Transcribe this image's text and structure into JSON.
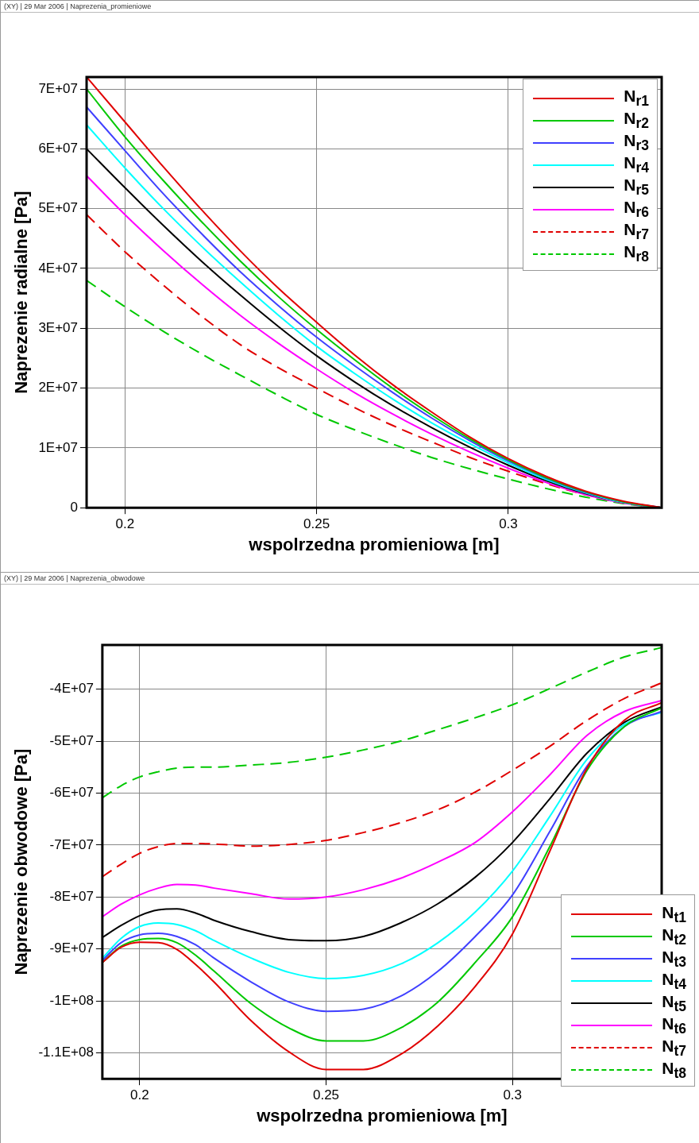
{
  "chart_data": [
    {
      "type": "line",
      "annotations": [
        "(XY) | 29 Mar 2006 | Naprezenia_promieniowe"
      ],
      "xlabel": "wspolrzedna promieniowa [m]",
      "ylabel": "Naprezenie radialne [Pa]",
      "x": [
        0.19,
        0.2,
        0.21,
        0.22,
        0.23,
        0.24,
        0.25,
        0.26,
        0.27,
        0.28,
        0.29,
        0.3,
        0.31,
        0.32,
        0.33,
        0.34
      ],
      "xlim": [
        0.19,
        0.34
      ],
      "xticks": [
        0.2,
        0.25,
        0.3
      ],
      "ylim": [
        0,
        72000000.0
      ],
      "yticks": [
        0,
        {
          "value": 10000000.0,
          "label": "1E+07"
        },
        {
          "value": 20000000.0,
          "label": "2E+07"
        },
        {
          "value": 30000000.0,
          "label": "3E+07"
        },
        {
          "value": 40000000.0,
          "label": "4E+07"
        },
        {
          "value": 50000000.0,
          "label": "5E+07"
        },
        {
          "value": 60000000.0,
          "label": "6E+07"
        },
        {
          "value": 70000000.0,
          "label": "7E+07"
        }
      ],
      "grid": true,
      "legend": "top right",
      "series": [
        {
          "name": "N$_{r1}$",
          "color": "#e00000",
          "line_style": "solid",
          "values": [
            72000000.0,
            64500000.0,
            57000000.0,
            49800000.0,
            43000000.0,
            36700000.0,
            31000000.0,
            25500000.0,
            20500000.0,
            16000000.0,
            11800000.0,
            8200000.0,
            5200000.0,
            2800000.0,
            1100000.0,
            0
          ]
        },
        {
          "name": "N$_{r2}$",
          "color": "#00c800",
          "line_style": "solid",
          "values": [
            70000000.0,
            62000000.0,
            54700000.0,
            47800000.0,
            41300000.0,
            35300000.0,
            29800000.0,
            24700000.0,
            19900000.0,
            15500000.0,
            11500000.0,
            8000000.0,
            5000000.0,
            2700000.0,
            1000000.0,
            0
          ]
        },
        {
          "name": "N$_{r3}$",
          "color": "#4040ff",
          "line_style": "solid",
          "values": [
            67000000.0,
            59700000.0,
            52500000.0,
            45800000.0,
            39500000.0,
            33800000.0,
            28500000.0,
            23700000.0,
            19200000.0,
            15000000.0,
            11200000.0,
            7800000.0,
            4900000.0,
            2600000.0,
            1000000.0,
            0
          ]
        },
        {
          "name": "N$_{r4}$",
          "color": "#00ffff",
          "line_style": "solid",
          "values": [
            64000000.0,
            56800000.0,
            50000000.0,
            43700000.0,
            37800000.0,
            32200000.0,
            27000000.0,
            22400000.0,
            18100000.0,
            14200000.0,
            10700000.0,
            7500000.0,
            4700000.0,
            2500000.0,
            900000.0,
            0
          ]
        },
        {
          "name": "N$_{r5}$",
          "color": "#000000",
          "line_style": "solid",
          "values": [
            60000000.0,
            53500000.0,
            47200000.0,
            41200000.0,
            35600000.0,
            30300000.0,
            25400000.0,
            21000000.0,
            17000000.0,
            13400000.0,
            10100000.0,
            7100000.0,
            4500000.0,
            2400000.0,
            900000.0,
            0
          ]
        },
        {
          "name": "N$_{r6}$",
          "color": "#ff00ff",
          "line_style": "solid",
          "values": [
            55500000.0,
            49000000.0,
            43000000.0,
            37400000.0,
            32200000.0,
            27500000.0,
            23200000.0,
            19200000.0,
            15600000.0,
            12300000.0,
            9300000.0,
            6600000.0,
            4200000.0,
            2200000.0,
            800000.0,
            0
          ]
        },
        {
          "name": "N$_{r7}$",
          "color": "#e00000",
          "line_style": "dashed",
          "values": [
            49000000.0,
            42800000.0,
            37200000.0,
            32000000.0,
            27300000.0,
            23400000.0,
            20000000.0,
            16700000.0,
            13700000.0,
            11000000.0,
            8400000.0,
            6100000.0,
            4000000.0,
            2200000.0,
            800000.0,
            0
          ]
        },
        {
          "name": "N$_{r8}$",
          "color": "#00c800",
          "line_style": "dashed",
          "values": [
            38000000.0,
            33600000.0,
            29500000.0,
            25700000.0,
            22200000.0,
            18800000.0,
            15600000.0,
            13000000.0,
            10600000.0,
            8400000.0,
            6500000.0,
            4800000.0,
            3200000.0,
            1800000.0,
            700000.0,
            0
          ]
        }
      ]
    },
    {
      "type": "line",
      "annotations": [
        "(XY) | 29 Mar 2006 | Naprezenia_obwodowe"
      ],
      "xlabel": "wspolrzedna promieniowa [m]",
      "ylabel": "Naprezenie obwodowe [Pa]",
      "x": [
        0.19,
        0.195,
        0.2,
        0.205,
        0.21,
        0.215,
        0.22,
        0.23,
        0.24,
        0.25,
        0.26,
        0.27,
        0.28,
        0.29,
        0.3,
        0.31,
        0.32,
        0.33,
        0.34
      ],
      "xlim": [
        0.19,
        0.34
      ],
      "xticks": [
        0.2,
        0.25,
        0.3
      ],
      "ylim": [
        -115000000.0,
        -31500000.0
      ],
      "yticks": [
        {
          "value": -110000000.0,
          "label": "-1.1E+08"
        },
        {
          "value": -100000000.0,
          "label": "-1E+08"
        },
        {
          "value": -90000000.0,
          "label": "-9E+07"
        },
        {
          "value": -80000000.0,
          "label": "-8E+07"
        },
        {
          "value": -70000000.0,
          "label": "-7E+07"
        },
        {
          "value": -60000000.0,
          "label": "-6E+07"
        },
        {
          "value": -50000000.0,
          "label": "-5E+07"
        },
        {
          "value": -40000000.0,
          "label": "-4E+07"
        }
      ],
      "grid": true,
      "legend": "bottom right",
      "series": [
        {
          "name": "N$_{t1}$",
          "color": "#e00000",
          "line_style": "solid",
          "values": [
            -92600000.0,
            -89700000.0,
            -88700000.0,
            -88800000.0,
            -90100000.0,
            -93000000.0,
            -96400000.0,
            -103900000.0,
            -109800000.0,
            -113200000.0,
            -113200000.0,
            -110300000.0,
            -104800000.0,
            -97200000.0,
            -87100000.0,
            -71200000.0,
            -55200000.0,
            -46000000.0,
            -42600000.0
          ]
        },
        {
          "name": "N$_{t2}$",
          "color": "#00c800",
          "line_style": "solid",
          "values": [
            -92600000.0,
            -89500000.0,
            -88200000.0,
            -88000000.0,
            -88800000.0,
            -91200000.0,
            -94300000.0,
            -100600000.0,
            -105200000.0,
            -107700000.0,
            -107700000.0,
            -105200000.0,
            -100200000.0,
            -92600000.0,
            -83800000.0,
            -70300000.0,
            -55600000.0,
            -47200000.0,
            -43600000.0
          ]
        },
        {
          "name": "N$_{t3}$",
          "color": "#4040ff",
          "line_style": "solid",
          "values": [
            -92200000.0,
            -88800000.0,
            -87300000.0,
            -87000000.0,
            -87600000.0,
            -89200000.0,
            -91800000.0,
            -96400000.0,
            -100200000.0,
            -102000000.0,
            -101600000.0,
            -99100000.0,
            -94300000.0,
            -87600000.0,
            -79600000.0,
            -67400000.0,
            -54800000.0,
            -47200000.0,
            -44300000.0
          ]
        },
        {
          "name": "N$_{t4}$",
          "color": "#00ffff",
          "line_style": "solid",
          "values": [
            -91800000.0,
            -88000000.0,
            -85700000.0,
            -85000000.0,
            -85300000.0,
            -86500000.0,
            -88400000.0,
            -91800000.0,
            -94500000.0,
            -95700000.0,
            -95100000.0,
            -92900000.0,
            -88800000.0,
            -82900000.0,
            -75000000.0,
            -64500000.0,
            -53500000.0,
            -46800000.0,
            -44500000.0
          ]
        },
        {
          "name": "N$_{t5}$",
          "color": "#000000",
          "line_style": "solid",
          "values": [
            -87800000.0,
            -85500000.0,
            -83600000.0,
            -82500000.0,
            -82300000.0,
            -83100000.0,
            -84500000.0,
            -86700000.0,
            -88200000.0,
            -88400000.0,
            -87600000.0,
            -85000000.0,
            -81300000.0,
            -76200000.0,
            -69500000.0,
            -61100000.0,
            -52300000.0,
            -46400000.0,
            -43400000.0
          ]
        },
        {
          "name": "N$_{t6}$",
          "color": "#ff00ff",
          "line_style": "solid",
          "values": [
            -83800000.0,
            -81400000.0,
            -79600000.0,
            -78300000.0,
            -77600000.0,
            -77700000.0,
            -78300000.0,
            -79400000.0,
            -80400000.0,
            -80000000.0,
            -78600000.0,
            -76400000.0,
            -73300000.0,
            -69500000.0,
            -63600000.0,
            -56500000.0,
            -48900000.0,
            -44300000.0,
            -42200000.0
          ]
        },
        {
          "name": "N$_{t7}$",
          "color": "#e00000",
          "line_style": "dashed",
          "values": [
            -76100000.0,
            -73700000.0,
            -71600000.0,
            -70300000.0,
            -69700000.0,
            -69700000.0,
            -69800000.0,
            -70200000.0,
            -69900000.0,
            -69100000.0,
            -67600000.0,
            -65700000.0,
            -63200000.0,
            -59800000.0,
            -55600000.0,
            -51000000.0,
            -46000000.0,
            -41800000.0,
            -38800000.0
          ]
        },
        {
          "name": "N$_{t8}$",
          "color": "#00c800",
          "line_style": "dashed",
          "values": [
            -60900000.0,
            -58600000.0,
            -56900000.0,
            -55900000.0,
            -55200000.0,
            -55000000.0,
            -55000000.0,
            -54600000.0,
            -54100000.0,
            -53100000.0,
            -51700000.0,
            -50000000.0,
            -47800000.0,
            -45500000.0,
            -43000000.0,
            -39900000.0,
            -36700000.0,
            -33800000.0,
            -32000000.0
          ]
        }
      ]
    }
  ]
}
